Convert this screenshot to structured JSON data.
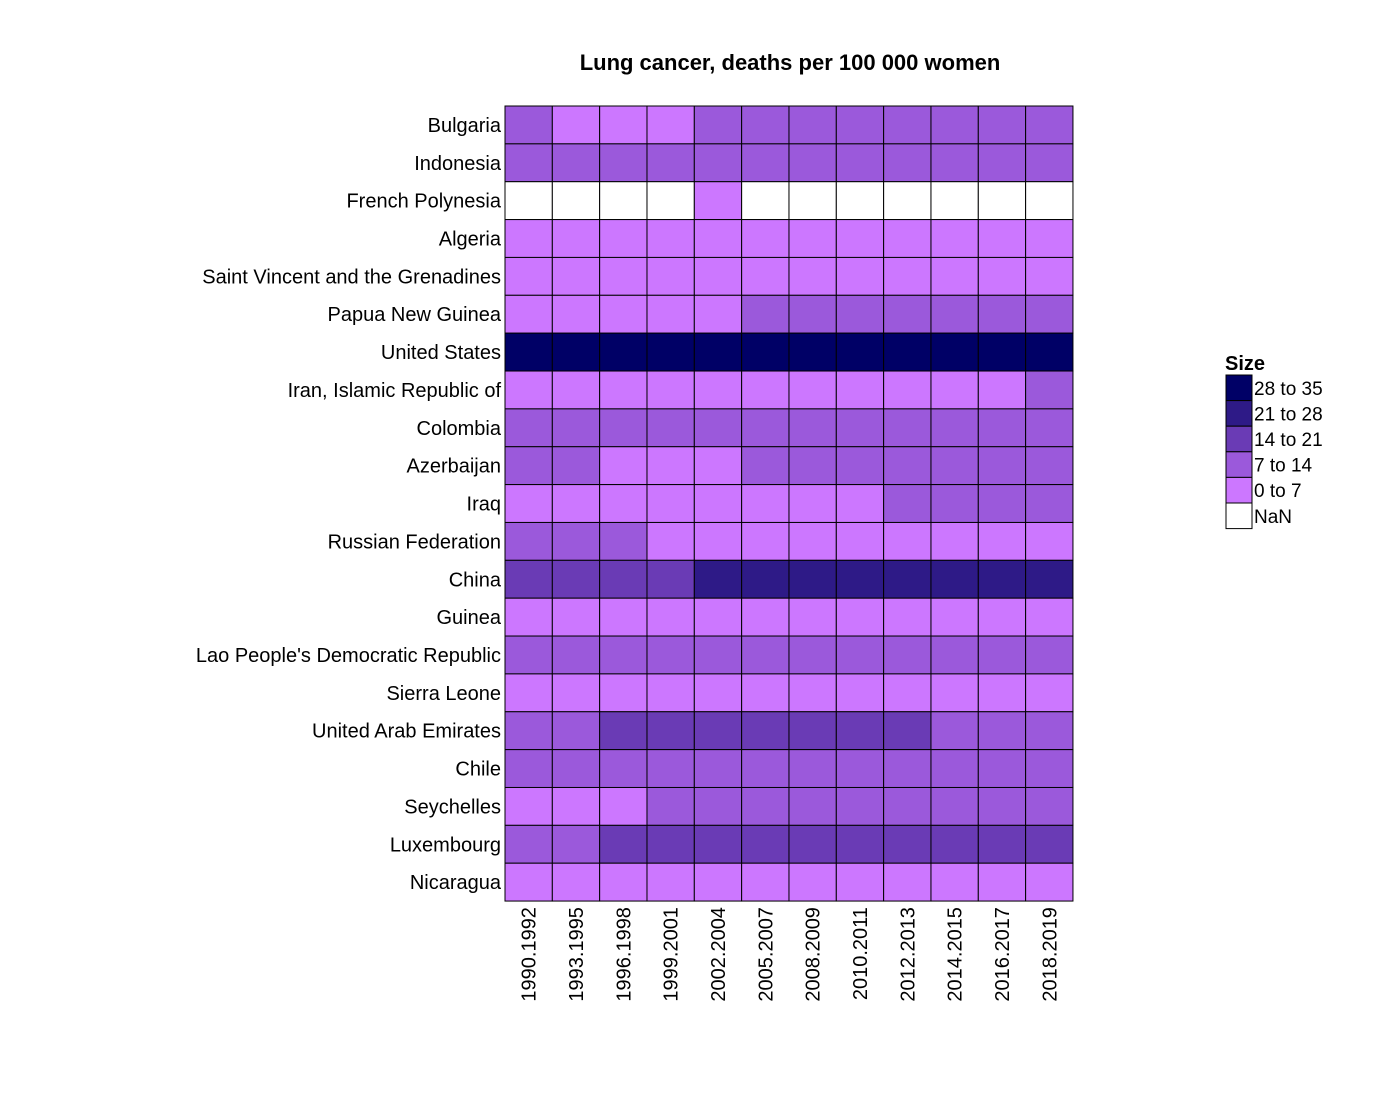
{
  "chart_data": {
    "type": "heatmap",
    "title": "Lung cancer, deaths per 100 000 women",
    "rows": [
      "Bulgaria",
      "Indonesia",
      "French Polynesia",
      "Algeria",
      "Saint Vincent and the Grenadines",
      "Papua New Guinea",
      "United States",
      "Iran, Islamic Republic of",
      "Colombia",
      "Azerbaijan",
      "Iraq",
      "Russian Federation",
      "China",
      "Guinea",
      "Lao People's Democratic Republic",
      "Sierra Leone",
      "United Arab Emirates",
      "Chile",
      "Seychelles",
      "Luxembourg",
      "Nicaragua"
    ],
    "columns": [
      "1990.1992",
      "1993.1995",
      "1996.1998",
      "1999.2001",
      "2002.2004",
      "2005.2007",
      "2008.2009",
      "2010.2011",
      "2012.2013",
      "2014.2015",
      "2016.2017",
      "2018.2019"
    ],
    "bins": [
      {
        "label": "28  to  35",
        "min": 28,
        "max": 35,
        "color": "#000066"
      },
      {
        "label": "21  to  28",
        "min": 21,
        "max": 28,
        "color": "#2e1a87"
      },
      {
        "label": "14  to  21",
        "min": 14,
        "max": 21,
        "color": "#6a3bb5"
      },
      {
        "label": "7  to  14",
        "min": 7,
        "max": 14,
        "color": "#9b59db"
      },
      {
        "label": "0  to  7",
        "min": 0,
        "max": 7,
        "color": "#cc77ff"
      },
      {
        "label": "NaN",
        "min": null,
        "max": null,
        "color": "#ffffff"
      }
    ],
    "values": [
      [
        9,
        5,
        5,
        5,
        10,
        10,
        10,
        10,
        10,
        10,
        10,
        10
      ],
      [
        10,
        10,
        10,
        10,
        10,
        10,
        10,
        10,
        10,
        10,
        10,
        10
      ],
      [
        null,
        null,
        null,
        null,
        5,
        null,
        null,
        null,
        null,
        null,
        null,
        null
      ],
      [
        3,
        3,
        3,
        3,
        3,
        3,
        3,
        3,
        3,
        3,
        3,
        3
      ],
      [
        4,
        4,
        4,
        4,
        4,
        4,
        4,
        4,
        4,
        4,
        4,
        4
      ],
      [
        5,
        5,
        5,
        5,
        6,
        8,
        8,
        8,
        8,
        8,
        8,
        8
      ],
      [
        32,
        33,
        33,
        33,
        33,
        33,
        33,
        33,
        33,
        33,
        32,
        32
      ],
      [
        3,
        3,
        3,
        3,
        3,
        3,
        3,
        3,
        3,
        4,
        5,
        7
      ],
      [
        10,
        10,
        10,
        10,
        10,
        10,
        10,
        10,
        10,
        10,
        10,
        10
      ],
      [
        8,
        8,
        5,
        5,
        5,
        8,
        8,
        8,
        8,
        8,
        8,
        8
      ],
      [
        5,
        5,
        5,
        5,
        5,
        5,
        5,
        6,
        8,
        8,
        8,
        8
      ],
      [
        8,
        8,
        8,
        6,
        6,
        6,
        6,
        6,
        6,
        6,
        6,
        6
      ],
      [
        17,
        18,
        18,
        19,
        22,
        23,
        23,
        24,
        24,
        24,
        24,
        24
      ],
      [
        2,
        2,
        2,
        2,
        2,
        2,
        2,
        2,
        2,
        2,
        2,
        2
      ],
      [
        10,
        10,
        10,
        10,
        10,
        10,
        10,
        10,
        10,
        10,
        10,
        10
      ],
      [
        2,
        2,
        2,
        2,
        2,
        2,
        2,
        2,
        2,
        2,
        2,
        2
      ],
      [
        10,
        10,
        15,
        15,
        15,
        15,
        15,
        15,
        15,
        11,
        11,
        11
      ],
      [
        10,
        10,
        10,
        10,
        10,
        10,
        10,
        10,
        10,
        10,
        10,
        10
      ],
      [
        5,
        5,
        5,
        9,
        9,
        9,
        9,
        9,
        9,
        9,
        9,
        9
      ],
      [
        11,
        11,
        16,
        16,
        16,
        16,
        16,
        16,
        16,
        16,
        16,
        16
      ],
      [
        3,
        3,
        3,
        3,
        3,
        3,
        3,
        3,
        3,
        3,
        3,
        3
      ]
    ],
    "legend_title": "Size",
    "legend_position": "right"
  }
}
